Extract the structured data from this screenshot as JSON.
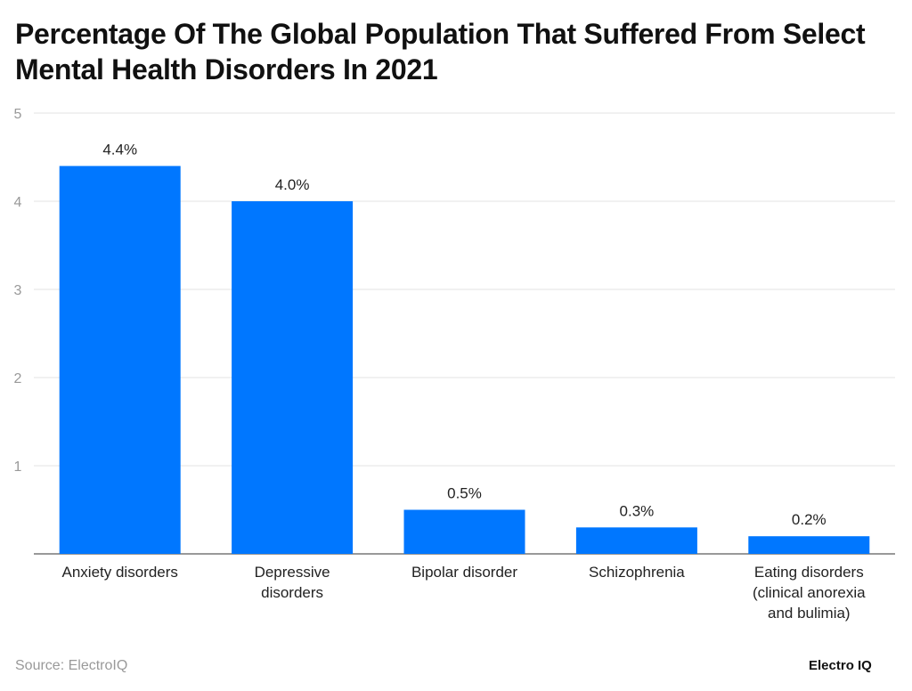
{
  "chart_data": {
    "type": "bar",
    "title": "Percentage Of The Global Population That Suffered From Select Mental Health Disorders In 2021",
    "categories": [
      [
        "Anxiety disorders"
      ],
      [
        "Depressive",
        "disorders"
      ],
      [
        "Bipolar disorder"
      ],
      [
        "Schizophrenia"
      ],
      [
        "Eating disorders",
        "(clinical anorexia",
        "and bulimia)"
      ]
    ],
    "values": [
      4.4,
      4.0,
      0.5,
      0.3,
      0.2
    ],
    "data_labels": [
      "4.4%",
      "4.0%",
      "0.5%",
      "0.3%",
      "0.2%"
    ],
    "ylim": [
      0,
      5
    ],
    "yticks": [
      1,
      2,
      3,
      4,
      5
    ],
    "grid": true,
    "bar_color": "#0077FF"
  },
  "footer": {
    "source": "Source: ElectroIQ",
    "logo": "Electro IQ"
  }
}
